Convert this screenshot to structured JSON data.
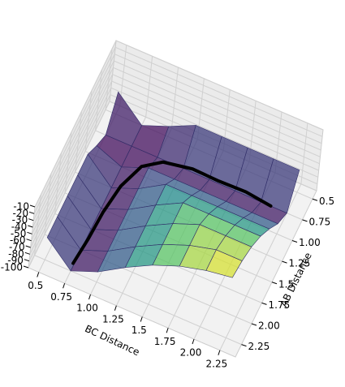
{
  "chart_data": {
    "type": "surface3d",
    "xlabel": "AB Distance",
    "ylabel": "BC Distance",
    "x": [
      0.5,
      0.75,
      1.0,
      1.25,
      1.5,
      1.75,
      2.0,
      2.25
    ],
    "y": [
      0.5,
      0.75,
      1.0,
      1.25,
      1.5,
      1.75,
      2.0,
      2.25
    ],
    "z": [
      [
        -67,
        -100,
        -85,
        -67,
        -67,
        -67,
        -67,
        -67
      ],
      [
        -100,
        -100,
        -100,
        -100,
        -100,
        -100,
        -100,
        -100
      ],
      [
        -85,
        -100,
        -85,
        -85,
        -85,
        -85,
        -85,
        -85
      ],
      [
        -67,
        -100,
        -85,
        -62,
        -62,
        -62,
        -62,
        -62
      ],
      [
        -67,
        -100,
        -85,
        -62,
        -42,
        -42,
        -42,
        -42
      ],
      [
        -67,
        -100,
        -85,
        -62,
        -42,
        -27,
        -27,
        -27
      ],
      [
        -67,
        -100,
        -85,
        -62,
        -42,
        -27,
        -17,
        -17
      ],
      [
        -67,
        -100,
        -85,
        -62,
        -42,
        -27,
        -17,
        -11
      ]
    ],
    "trajectory": {
      "color": "#000000",
      "x": [
        2.2,
        1.9,
        1.6,
        1.3,
        1.05,
        0.9,
        0.8,
        0.78,
        0.75,
        0.77
      ],
      "y": [
        0.75,
        0.78,
        0.8,
        0.85,
        0.95,
        1.1,
        1.35,
        1.6,
        1.85,
        2.1
      ],
      "z": [
        -95,
        -93,
        -90,
        -85,
        -80,
        -82,
        -88,
        -92,
        -95,
        -97
      ]
    },
    "xlim": [
      0.4,
      2.4
    ],
    "ylim": [
      0.4,
      2.4
    ],
    "zlim": [
      -100,
      -10
    ],
    "xticks": [
      0.5,
      0.75,
      1.0,
      1.25,
      1.5,
      1.75,
      2.0,
      2.25
    ],
    "yticks": [
      0.5,
      0.75,
      1.0,
      1.25,
      1.5,
      1.75,
      2.0,
      2.25
    ],
    "zticks": [
      -100,
      -90,
      -80,
      -70,
      -60,
      -50,
      -40,
      -30,
      -20,
      -10
    ],
    "grid": true
  }
}
